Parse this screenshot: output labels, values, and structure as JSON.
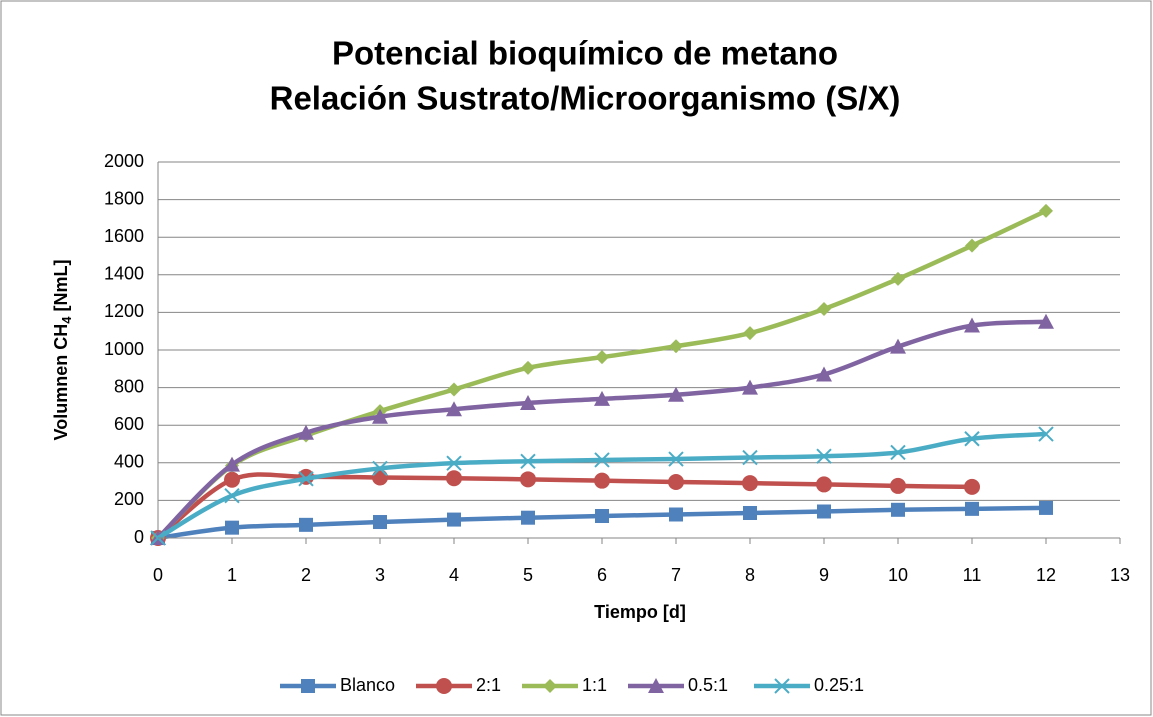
{
  "chart_data": {
    "type": "line",
    "title": [
      "Potencial bioquímico de metano",
      "Relación Sustrato/Microorganismo (S/X)"
    ],
    "x_label": "Tiempo [d]",
    "y_label": [
      "Volumnen  CH",
      "4",
      " [NmL]"
    ],
    "x": [
      0,
      1,
      2,
      3,
      4,
      5,
      6,
      7,
      8,
      9,
      10,
      11,
      12
    ],
    "xlim": [
      0,
      13
    ],
    "xticks": [
      0,
      1,
      2,
      3,
      4,
      5,
      6,
      7,
      8,
      9,
      10,
      11,
      12,
      13
    ],
    "ylim": [
      0,
      2000
    ],
    "yticks": [
      0,
      200,
      400,
      600,
      800,
      1000,
      1200,
      1400,
      1600,
      1800,
      2000
    ],
    "grid": true,
    "smooth": true,
    "legend": "bottom",
    "series": [
      {
        "name": "Blanco",
        "color": "#4f81bd",
        "marker": "square",
        "values": [
          0,
          55,
          70,
          85,
          98,
          108,
          117,
          125,
          133,
          141,
          150,
          155,
          160
        ]
      },
      {
        "name": "2:1",
        "color": "#c0504d",
        "marker": "circle",
        "values": [
          0,
          310,
          325,
          322,
          318,
          312,
          305,
          298,
          292,
          285,
          277,
          272,
          null
        ]
      },
      {
        "name": "1:1",
        "color": "#9bbb59",
        "marker": "diamond",
        "values": [
          0,
          385,
          545,
          675,
          790,
          905,
          962,
          1020,
          1090,
          1218,
          1378,
          1555,
          1740
        ]
      },
      {
        "name": "0.5:1",
        "color": "#8064a2",
        "marker": "triangle",
        "values": [
          0,
          390,
          560,
          645,
          685,
          718,
          740,
          762,
          800,
          870,
          1018,
          1130,
          1150
        ]
      },
      {
        "name": "0.25:1",
        "color": "#4bacc6",
        "marker": "x",
        "values": [
          0,
          225,
          315,
          370,
          398,
          408,
          415,
          420,
          428,
          435,
          455,
          528,
          553
        ]
      }
    ]
  }
}
